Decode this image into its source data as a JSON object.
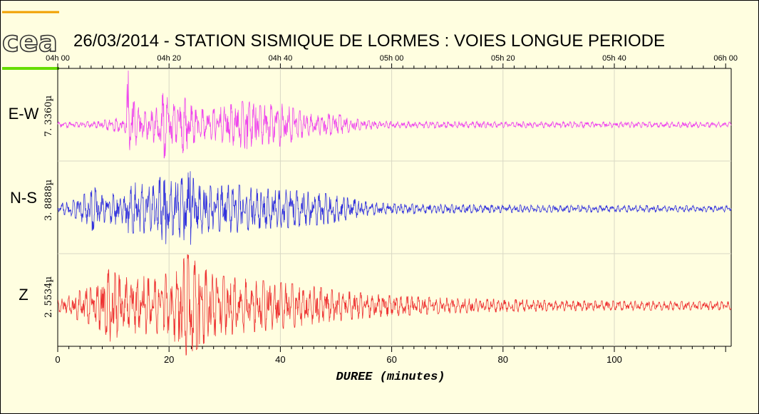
{
  "chart_data": {
    "type": "line",
    "title": "26/03/2014  -  STATION SISMIQUE DE LORMES : VOIES LONGUE PERIODE",
    "xlabel": "DUREE (minutes)",
    "xlim": [
      0,
      121
    ],
    "x_ticks": [
      0,
      20,
      40,
      60,
      80,
      100
    ],
    "time_ticks": [
      "04h 00",
      "04h 20",
      "04h 40",
      "05h 00",
      "05h 20",
      "05h 40",
      "06h 00"
    ],
    "grid": true,
    "logo": "cea",
    "logo_colors": [
      "#f0a000",
      "#66dd00"
    ],
    "series": [
      {
        "name": "E-W",
        "scale": "7. 3360µ",
        "color": "#ee44ee",
        "envelope": [
          [
            0,
            0.05
          ],
          [
            7,
            0.06
          ],
          [
            10,
            0.12
          ],
          [
            12.2,
            0.15
          ],
          [
            12.6,
            1.0
          ],
          [
            13.3,
            0.5
          ],
          [
            15,
            0.25
          ],
          [
            17,
            0.3
          ],
          [
            18.5,
            0.5
          ],
          [
            19.1,
            0.62
          ],
          [
            20.5,
            0.35
          ],
          [
            22.5,
            0.55
          ],
          [
            24,
            0.35
          ],
          [
            27,
            0.25
          ],
          [
            30,
            0.35
          ],
          [
            34,
            0.45
          ],
          [
            36,
            0.35
          ],
          [
            40,
            0.4
          ],
          [
            45,
            0.2
          ],
          [
            50,
            0.2
          ],
          [
            54,
            0.1
          ],
          [
            60,
            0.06
          ],
          [
            121,
            0.05
          ]
        ],
        "spikes": [
          {
            "t": 12.7,
            "a": 1.0
          },
          {
            "t": 12.9,
            "a": -0.47
          },
          {
            "t": 13.4,
            "a": 0.3
          },
          {
            "t": 19.1,
            "a": -0.62
          },
          {
            "t": 18.8,
            "a": 0.55
          },
          {
            "t": 22.8,
            "a": 0.45
          },
          {
            "t": 34.0,
            "a": -0.45
          },
          {
            "t": 35.6,
            "a": 0.32
          }
        ]
      },
      {
        "name": "N-S",
        "scale": "3. 8888µ",
        "color": "#3333dd",
        "envelope": [
          [
            0,
            0.1
          ],
          [
            3,
            0.2
          ],
          [
            5,
            0.35
          ],
          [
            6.5,
            0.5
          ],
          [
            8,
            0.3
          ],
          [
            10,
            0.35
          ],
          [
            12,
            0.4
          ],
          [
            14,
            0.6
          ],
          [
            17,
            0.5
          ],
          [
            19,
            0.8
          ],
          [
            21,
            0.55
          ],
          [
            23.7,
            0.85
          ],
          [
            25,
            0.6
          ],
          [
            28,
            0.5
          ],
          [
            32,
            0.55
          ],
          [
            36,
            0.45
          ],
          [
            40,
            0.45
          ],
          [
            44,
            0.4
          ],
          [
            48,
            0.35
          ],
          [
            52,
            0.25
          ],
          [
            56,
            0.15
          ],
          [
            60,
            0.12
          ],
          [
            70,
            0.1
          ],
          [
            90,
            0.08
          ],
          [
            121,
            0.07
          ]
        ],
        "spikes": [
          {
            "t": 23.8,
            "a": 0.85
          },
          {
            "t": 19.4,
            "a": -0.8
          },
          {
            "t": 6.2,
            "a": -0.5
          },
          {
            "t": 12.7,
            "a": -0.55
          },
          {
            "t": 21.2,
            "a": 0.6
          }
        ]
      },
      {
        "name": "Z",
        "scale": "2. 5534µ",
        "color": "#ee3333",
        "envelope": [
          [
            0,
            0.1
          ],
          [
            2,
            0.2
          ],
          [
            4,
            0.3
          ],
          [
            7,
            0.4
          ],
          [
            9.2,
            0.7
          ],
          [
            12,
            0.55
          ],
          [
            15,
            0.6
          ],
          [
            17,
            0.5
          ],
          [
            19,
            0.6
          ],
          [
            21,
            0.7
          ],
          [
            23.3,
            1.0
          ],
          [
            25.5,
            0.8
          ],
          [
            28,
            0.6
          ],
          [
            32,
            0.55
          ],
          [
            36,
            0.5
          ],
          [
            40,
            0.45
          ],
          [
            45,
            0.4
          ],
          [
            50,
            0.3
          ],
          [
            55,
            0.25
          ],
          [
            60,
            0.2
          ],
          [
            70,
            0.15
          ],
          [
            90,
            0.1
          ],
          [
            121,
            0.08
          ]
        ],
        "spikes": [
          {
            "t": 23.3,
            "a": 1.0
          },
          {
            "t": 9.2,
            "a": 0.7
          },
          {
            "t": 9.4,
            "a": -0.7
          },
          {
            "t": 25.5,
            "a": -0.75
          },
          {
            "t": 21.7,
            "a": -0.7
          }
        ]
      }
    ]
  }
}
